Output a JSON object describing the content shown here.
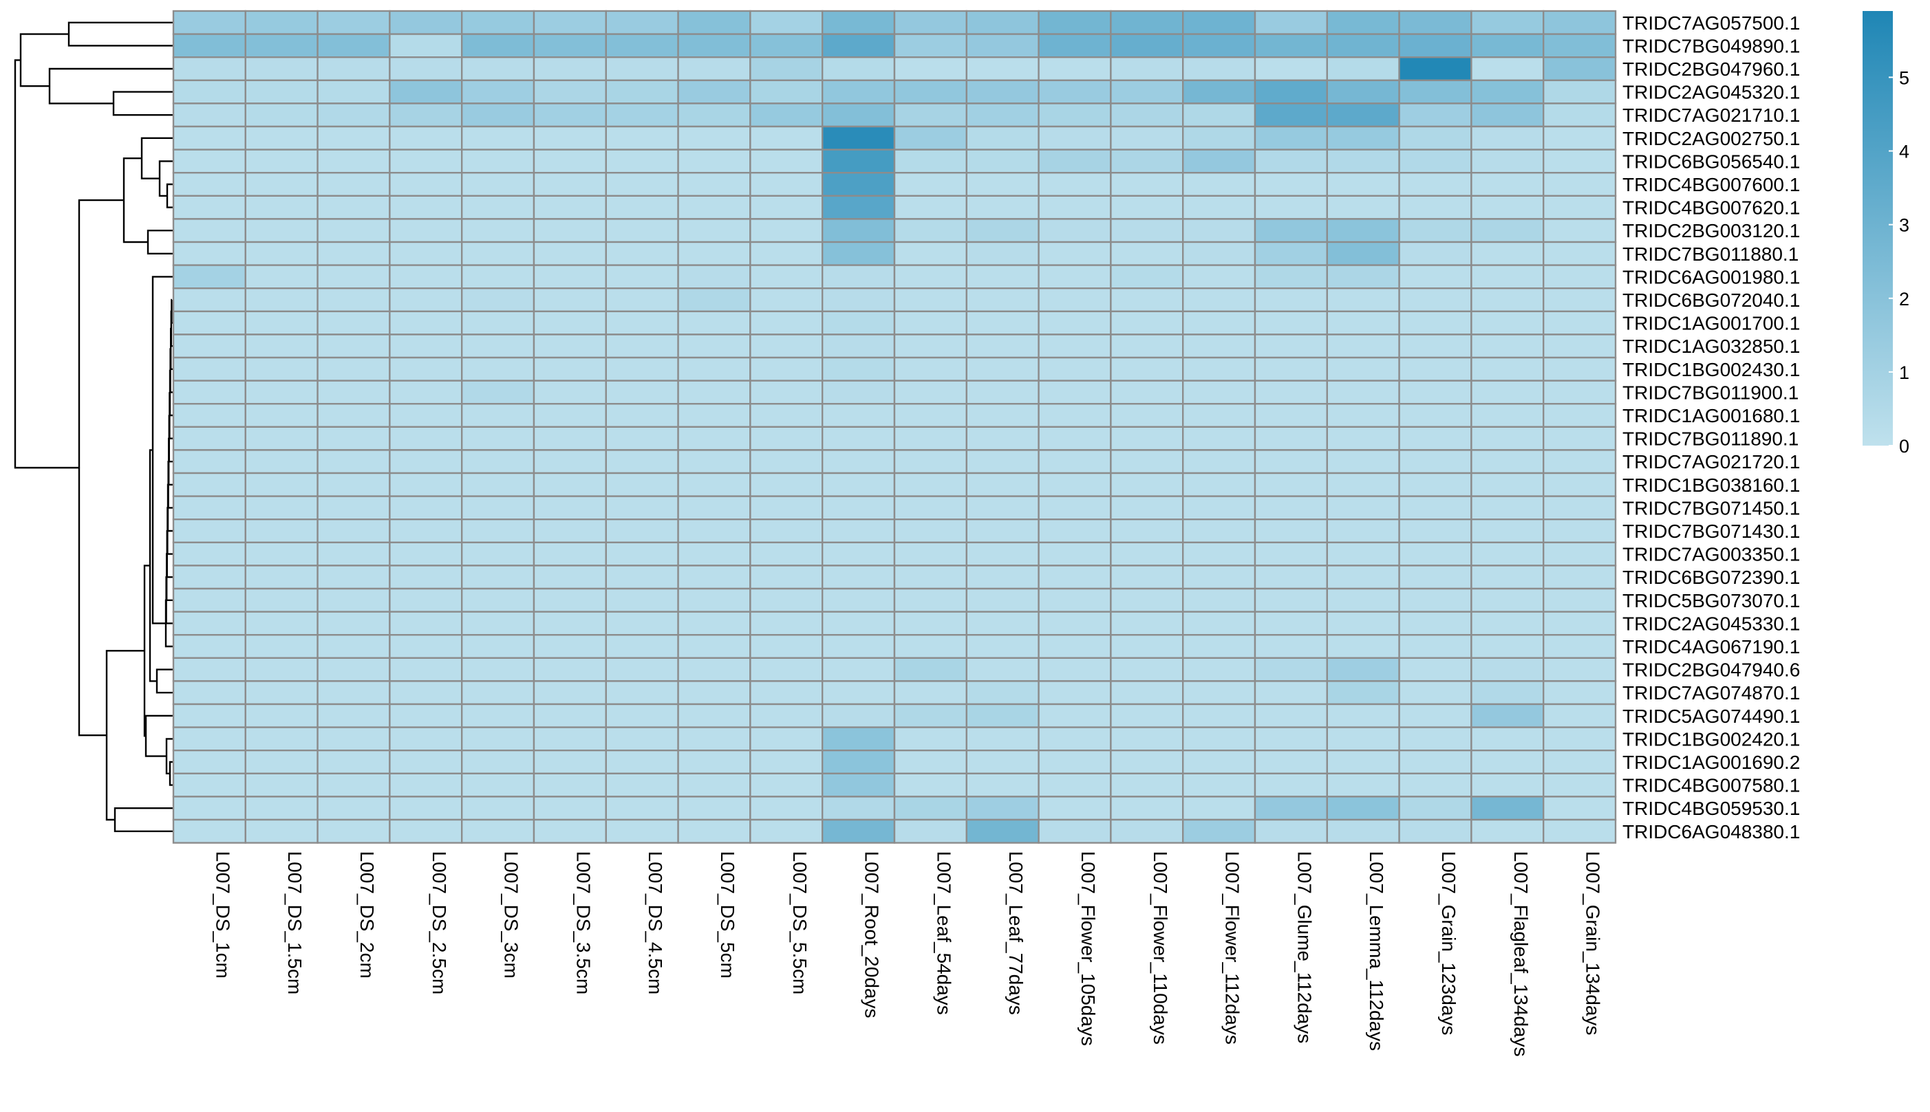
{
  "chart_data": {
    "type": "heatmap",
    "title": "",
    "color_scale": {
      "low": "#bfe1ed",
      "high": "#1f86b5",
      "border": "#8c8c8c"
    },
    "legend": {
      "position": "right",
      "ticks": [
        0,
        1,
        2,
        3,
        4,
        5
      ],
      "min": 0,
      "max": 5.9
    },
    "dendrogram": "rows",
    "columns": [
      "L007_DS_1cm",
      "L007_DS_1.5cm",
      "L007_DS_2cm",
      "L007_DS_2.5cm",
      "L007_DS_3cm",
      "L007_DS_3.5cm",
      "L007_DS_4.5cm",
      "L007_DS_5cm",
      "L007_DS_5.5cm",
      "L007_Root_20days",
      "L007_Leaf_54days",
      "L007_Leaf_77days",
      "L007_Flower_105days",
      "L007_Flower_110days",
      "L007_Flower_112days",
      "L007_Glume_112days",
      "L007_Lemma_112days",
      "L007_Grain_123days",
      "L007_Flagleaf_134days",
      "L007_Grain_134days"
    ],
    "rows": [
      "TRIDC7AG057500.1",
      "TRIDC7BG049890.1",
      "TRIDC2BG047960.1",
      "TRIDC2AG045320.1",
      "TRIDC7AG021710.1",
      "TRIDC2AG002750.1",
      "TRIDC6BG056540.1",
      "TRIDC4BG007600.1",
      "TRIDC4BG007620.1",
      "TRIDC2BG003120.1",
      "TRIDC7BG011880.1",
      "TRIDC6AG001980.1",
      "TRIDC6BG072040.1",
      "TRIDC1AG001700.1",
      "TRIDC1AG032850.1",
      "TRIDC1BG002430.1",
      "TRIDC7BG011900.1",
      "TRIDC1AG001680.1",
      "TRIDC7BG011890.1",
      "TRIDC7AG021720.1",
      "TRIDC1BG038160.1",
      "TRIDC7BG071450.1",
      "TRIDC7BG071430.1",
      "TRIDC7AG003350.1",
      "TRIDC6BG072390.1",
      "TRIDC5BG073070.1",
      "TRIDC2AG045330.1",
      "TRIDC4AG067190.1",
      "TRIDC2BG047940.6",
      "TRIDC7AG074870.1",
      "TRIDC5AG074490.1",
      "TRIDC1BG002420.1",
      "TRIDC1AG001690.2",
      "TRIDC4BG007580.1",
      "TRIDC4BG059530.1",
      "TRIDC6AG048380.1"
    ],
    "values": [
      [
        1.4,
        1.5,
        1.3,
        1.6,
        1.5,
        1.3,
        1.4,
        2.1,
        1.0,
        2.6,
        1.6,
        1.8,
        2.8,
        2.9,
        3.0,
        1.4,
        2.6,
        2.5,
        1.5,
        1.8
      ],
      [
        2.3,
        2.2,
        2.2,
        0.4,
        2.4,
        2.2,
        2.2,
        2.3,
        2.1,
        3.6,
        1.3,
        1.6,
        3.0,
        3.3,
        3.1,
        2.8,
        2.9,
        3.1,
        2.6,
        2.3
      ],
      [
        0.3,
        0.3,
        0.3,
        0.3,
        0.3,
        0.3,
        0.3,
        0.3,
        0.9,
        0.4,
        0.2,
        0.2,
        0.2,
        0.3,
        0.3,
        0.2,
        0.4,
        5.8,
        0.2,
        2.0
      ],
      [
        0.4,
        0.4,
        0.4,
        1.8,
        1.2,
        0.7,
        0.8,
        1.4,
        0.8,
        1.7,
        1.7,
        1.6,
        1.4,
        1.3,
        2.7,
        3.5,
        2.7,
        2.2,
        2.1,
        0.6
      ],
      [
        0.3,
        0.4,
        0.5,
        0.9,
        1.4,
        1.1,
        1.0,
        0.8,
        1.5,
        2.2,
        0.9,
        1.1,
        0.8,
        0.7,
        0.6,
        3.6,
        3.6,
        1.2,
        1.8,
        0.4
      ],
      [
        0.2,
        0.2,
        0.2,
        0.2,
        0.2,
        0.2,
        0.2,
        0.2,
        0.2,
        5.5,
        1.3,
        0.4,
        0.3,
        0.3,
        0.6,
        1.5,
        1.5,
        0.6,
        0.3,
        0.2
      ],
      [
        0.2,
        0.2,
        0.2,
        0.2,
        0.2,
        0.2,
        0.2,
        0.2,
        0.2,
        4.5,
        0.4,
        0.4,
        0.9,
        0.7,
        1.6,
        0.5,
        0.5,
        0.5,
        0.3,
        0.2
      ],
      [
        0.2,
        0.2,
        0.2,
        0.2,
        0.2,
        0.2,
        0.2,
        0.2,
        0.2,
        4.2,
        0.2,
        0.2,
        0.2,
        0.2,
        0.2,
        0.2,
        0.2,
        0.2,
        0.2,
        0.2
      ],
      [
        0.2,
        0.2,
        0.2,
        0.2,
        0.2,
        0.2,
        0.2,
        0.2,
        0.2,
        3.8,
        0.2,
        0.2,
        0.2,
        0.2,
        0.2,
        0.2,
        0.2,
        0.2,
        0.2,
        0.2
      ],
      [
        0.2,
        0.2,
        0.2,
        0.2,
        0.2,
        0.2,
        0.2,
        0.2,
        0.2,
        2.3,
        0.4,
        0.7,
        0.3,
        0.3,
        0.3,
        1.7,
        1.9,
        0.6,
        0.7,
        0.2
      ],
      [
        0.2,
        0.2,
        0.2,
        0.2,
        0.2,
        0.2,
        0.2,
        0.2,
        0.2,
        2.1,
        0.2,
        0.3,
        0.2,
        0.2,
        0.3,
        1.1,
        2.2,
        0.3,
        0.2,
        0.2
      ],
      [
        1.0,
        0.2,
        0.2,
        0.2,
        0.2,
        0.2,
        0.2,
        0.3,
        0.2,
        0.3,
        0.2,
        0.2,
        0.2,
        0.4,
        0.2,
        0.6,
        0.7,
        0.2,
        0.2,
        0.2
      ],
      [
        0.2,
        0.2,
        0.2,
        0.2,
        0.3,
        0.2,
        0.2,
        0.6,
        0.2,
        0.3,
        0.2,
        0.2,
        0.2,
        0.2,
        0.2,
        0.2,
        0.2,
        0.2,
        0.2,
        0.2
      ],
      [
        0.2,
        0.2,
        0.2,
        0.2,
        0.2,
        0.2,
        0.2,
        0.2,
        0.2,
        0.4,
        0.2,
        0.2,
        0.2,
        0.2,
        0.2,
        0.2,
        0.2,
        0.2,
        0.2,
        0.2
      ],
      [
        0.2,
        0.2,
        0.2,
        0.2,
        0.2,
        0.2,
        0.2,
        0.2,
        0.2,
        0.3,
        0.2,
        0.2,
        0.2,
        0.2,
        0.2,
        0.2,
        0.2,
        0.2,
        0.2,
        0.2
      ],
      [
        0.2,
        0.2,
        0.2,
        0.2,
        0.2,
        0.2,
        0.2,
        0.2,
        0.2,
        0.4,
        0.2,
        0.2,
        0.2,
        0.2,
        0.2,
        0.2,
        0.2,
        0.2,
        0.2,
        0.2
      ],
      [
        0.2,
        0.2,
        0.2,
        0.2,
        0.5,
        0.2,
        0.2,
        0.2,
        0.2,
        0.3,
        0.2,
        0.2,
        0.2,
        0.2,
        0.2,
        0.2,
        0.2,
        0.2,
        0.2,
        0.2
      ],
      [
        0.2,
        0.2,
        0.2,
        0.2,
        0.2,
        0.2,
        0.2,
        0.2,
        0.2,
        0.2,
        0.2,
        0.2,
        0.2,
        0.2,
        0.2,
        0.2,
        0.2,
        0.2,
        0.2,
        0.2
      ],
      [
        0.2,
        0.2,
        0.2,
        0.2,
        0.2,
        0.2,
        0.2,
        0.2,
        0.2,
        0.2,
        0.2,
        0.2,
        0.2,
        0.2,
        0.2,
        0.2,
        0.2,
        0.2,
        0.2,
        0.2
      ],
      [
        0.2,
        0.2,
        0.2,
        0.2,
        0.2,
        0.2,
        0.2,
        0.2,
        0.2,
        0.2,
        0.2,
        0.2,
        0.2,
        0.2,
        0.2,
        0.2,
        0.2,
        0.2,
        0.2,
        0.2
      ],
      [
        0.2,
        0.2,
        0.2,
        0.2,
        0.2,
        0.2,
        0.2,
        0.2,
        0.2,
        0.2,
        0.2,
        0.2,
        0.2,
        0.2,
        0.2,
        0.2,
        0.2,
        0.2,
        0.2,
        0.2
      ],
      [
        0.2,
        0.2,
        0.2,
        0.2,
        0.2,
        0.2,
        0.2,
        0.2,
        0.2,
        0.2,
        0.2,
        0.2,
        0.2,
        0.2,
        0.2,
        0.2,
        0.2,
        0.2,
        0.2,
        0.2
      ],
      [
        0.2,
        0.2,
        0.2,
        0.2,
        0.2,
        0.2,
        0.2,
        0.2,
        0.2,
        0.2,
        0.2,
        0.2,
        0.2,
        0.2,
        0.2,
        0.2,
        0.2,
        0.2,
        0.2,
        0.2
      ],
      [
        0.2,
        0.2,
        0.2,
        0.2,
        0.2,
        0.2,
        0.2,
        0.2,
        0.2,
        0.2,
        0.2,
        0.2,
        0.2,
        0.2,
        0.2,
        0.2,
        0.2,
        0.2,
        0.2,
        0.2
      ],
      [
        0.2,
        0.2,
        0.2,
        0.2,
        0.2,
        0.2,
        0.2,
        0.2,
        0.2,
        0.2,
        0.2,
        0.2,
        0.2,
        0.2,
        0.2,
        0.2,
        0.2,
        0.2,
        0.2,
        0.2
      ],
      [
        0.2,
        0.2,
        0.2,
        0.2,
        0.2,
        0.2,
        0.2,
        0.2,
        0.2,
        0.2,
        0.2,
        0.2,
        0.2,
        0.2,
        0.2,
        0.2,
        0.2,
        0.2,
        0.2,
        0.2
      ],
      [
        0.2,
        0.2,
        0.2,
        0.2,
        0.2,
        0.2,
        0.2,
        0.2,
        0.2,
        0.2,
        0.2,
        0.2,
        0.2,
        0.2,
        0.2,
        0.2,
        0.2,
        0.2,
        0.2,
        0.2
      ],
      [
        0.2,
        0.2,
        0.2,
        0.2,
        0.2,
        0.2,
        0.2,
        0.2,
        0.2,
        0.2,
        0.2,
        0.2,
        0.2,
        0.2,
        0.2,
        0.2,
        0.2,
        0.2,
        0.2,
        0.2
      ],
      [
        0.2,
        0.2,
        0.2,
        0.2,
        0.2,
        0.2,
        0.2,
        0.2,
        0.2,
        0.2,
        0.8,
        0.2,
        0.2,
        0.2,
        0.2,
        0.5,
        1.2,
        0.2,
        0.3,
        0.2
      ],
      [
        0.2,
        0.2,
        0.2,
        0.2,
        0.2,
        0.2,
        0.2,
        0.2,
        0.2,
        0.2,
        0.2,
        0.4,
        0.2,
        0.2,
        0.2,
        0.2,
        0.8,
        0.2,
        0.5,
        0.2
      ],
      [
        0.2,
        0.2,
        0.2,
        0.2,
        0.2,
        0.2,
        0.2,
        0.2,
        0.2,
        0.3,
        0.6,
        0.8,
        0.2,
        0.2,
        0.2,
        0.2,
        0.2,
        0.2,
        1.6,
        0.2
      ],
      [
        0.2,
        0.2,
        0.2,
        0.2,
        0.2,
        0.2,
        0.2,
        0.2,
        0.2,
        1.9,
        0.2,
        0.2,
        0.2,
        0.2,
        0.2,
        0.2,
        0.2,
        0.2,
        0.2,
        0.2
      ],
      [
        0.2,
        0.2,
        0.2,
        0.2,
        0.2,
        0.2,
        0.2,
        0.2,
        0.2,
        1.9,
        0.2,
        0.2,
        0.2,
        0.2,
        0.2,
        0.2,
        0.2,
        0.2,
        0.2,
        0.2
      ],
      [
        0.2,
        0.2,
        0.2,
        0.2,
        0.2,
        0.2,
        0.2,
        0.2,
        0.2,
        1.7,
        0.2,
        0.2,
        0.2,
        0.2,
        0.2,
        0.2,
        0.2,
        0.2,
        0.2,
        0.2
      ],
      [
        0.2,
        0.2,
        0.2,
        0.2,
        0.2,
        0.2,
        0.2,
        0.2,
        0.2,
        0.5,
        0.8,
        1.2,
        0.2,
        0.2,
        0.2,
        1.6,
        1.9,
        0.6,
        2.7,
        0.2
      ],
      [
        0.2,
        0.2,
        0.2,
        0.2,
        0.2,
        0.2,
        0.2,
        0.2,
        0.2,
        2.7,
        0.3,
        2.8,
        0.3,
        0.3,
        1.3,
        0.3,
        0.3,
        0.3,
        0.2,
        0.2
      ]
    ]
  }
}
